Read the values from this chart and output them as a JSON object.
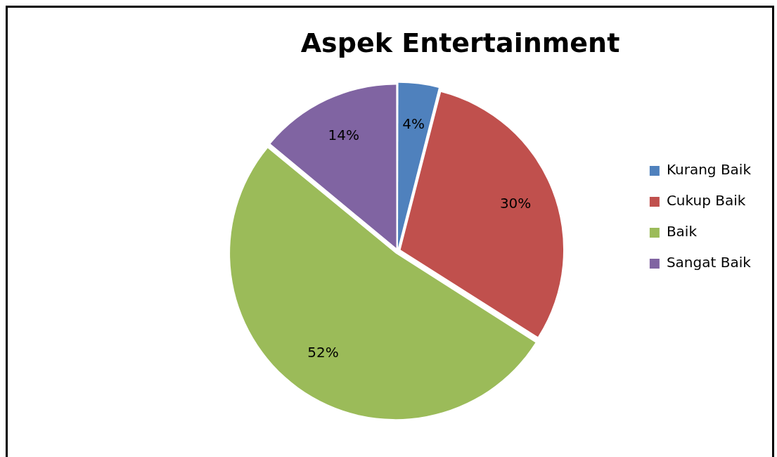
{
  "chart_data": {
    "type": "pie",
    "title": "Aspek Entertainment",
    "categories": [
      "Kurang Baik",
      "Cukup Baik",
      "Baik",
      "Sangat Baik"
    ],
    "values": [
      4,
      30,
      52,
      14
    ],
    "colors": [
      "#4f81bd",
      "#c0504d",
      "#9bbb59",
      "#8064a2"
    ],
    "value_labels": [
      "4%",
      "30%",
      "52%",
      "14%"
    ],
    "legend": "right"
  }
}
